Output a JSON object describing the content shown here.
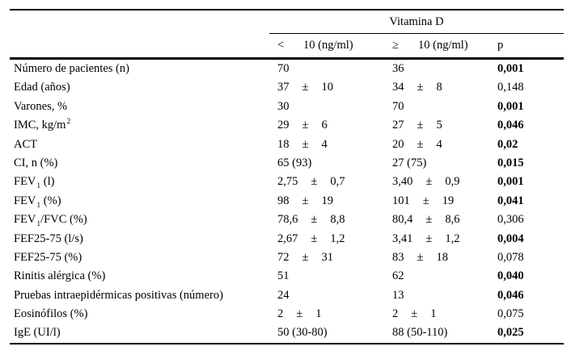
{
  "page": {
    "background": "#ffffff",
    "text_color": "#000000"
  },
  "table": {
    "group_header": {
      "title": "Vitamina D"
    },
    "columns": {
      "col1": {
        "symbol": "<",
        "label": "10 (ng/ml)"
      },
      "col2": {
        "symbol": "≥",
        "label": "10 (ng/ml)"
      },
      "p": {
        "label": "p"
      }
    },
    "rows": [
      {
        "label": {
          "pre": "Número de pacientes (n)"
        },
        "col1": {
          "value": "70"
        },
        "col2": {
          "value": "36"
        },
        "p": {
          "value": "0,001",
          "bold": true
        }
      },
      {
        "label": {
          "pre": "Edad (años)"
        },
        "col1": {
          "value": "37",
          "pm": "±",
          "sd": "10"
        },
        "col2": {
          "value": "34",
          "pm": "±",
          "sd": "8"
        },
        "p": {
          "value": "0,148",
          "bold": false
        }
      },
      {
        "label": {
          "pre": "Varones, %"
        },
        "col1": {
          "value": "30"
        },
        "col2": {
          "value": "70"
        },
        "p": {
          "value": "0,001",
          "bold": true
        }
      },
      {
        "label": {
          "pre": "IMC, kg/m",
          "sup": "2"
        },
        "col1": {
          "value": "29",
          "pm": "±",
          "sd": "6"
        },
        "col2": {
          "value": "27",
          "pm": "±",
          "sd": "5"
        },
        "p": {
          "value": "0,046",
          "bold": true
        }
      },
      {
        "label": {
          "pre": "ACT"
        },
        "col1": {
          "value": "18",
          "pm": "±",
          "sd": "4"
        },
        "col2": {
          "value": "20",
          "pm": "±",
          "sd": "4"
        },
        "p": {
          "value": "0,02",
          "bold": true
        }
      },
      {
        "label": {
          "pre": "CI, n (%)"
        },
        "col1": {
          "value": "65 (93)"
        },
        "col2": {
          "value": "27 (75)"
        },
        "p": {
          "value": "0,015",
          "bold": true
        }
      },
      {
        "label": {
          "pre": "FEV",
          "sub": "1",
          "post": " (l)"
        },
        "col1": {
          "value": "2,75",
          "pm": "±",
          "sd": "0,7"
        },
        "col2": {
          "value": "3,40",
          "pm": "±",
          "sd": "0,9"
        },
        "p": {
          "value": "0,001",
          "bold": true
        }
      },
      {
        "label": {
          "pre": "FEV",
          "sub": "1",
          "post": " (%)"
        },
        "col1": {
          "value": "98",
          "pm": "±",
          "sd": "19"
        },
        "col2": {
          "value": "101",
          "pm": "±",
          "sd": "19"
        },
        "p": {
          "value": "0,041",
          "bold": true
        }
      },
      {
        "label": {
          "pre": "FEV",
          "sub": "1",
          "post": "/FVC (%)"
        },
        "col1": {
          "value": "78,6",
          "pm": "±",
          "sd": "8,8"
        },
        "col2": {
          "value": "80,4",
          "pm": "±",
          "sd": "8,6"
        },
        "p": {
          "value": "0,306",
          "bold": false
        }
      },
      {
        "label": {
          "pre": "FEF25-75 (l/s)"
        },
        "col1": {
          "value": "2,67",
          "pm": "±",
          "sd": "1,2"
        },
        "col2": {
          "value": "3,41",
          "pm": "±",
          "sd": "1,2"
        },
        "p": {
          "value": "0,004",
          "bold": true
        }
      },
      {
        "label": {
          "pre": "FEF25-75 (%)"
        },
        "col1": {
          "value": "72",
          "pm": "±",
          "sd": "31"
        },
        "col2": {
          "value": "83",
          "pm": "±",
          "sd": "18"
        },
        "p": {
          "value": "0,078",
          "bold": false
        }
      },
      {
        "label": {
          "pre": "Rinitis alérgica (%)"
        },
        "col1": {
          "value": "51"
        },
        "col2": {
          "value": "62"
        },
        "p": {
          "value": "0,040",
          "bold": true
        }
      },
      {
        "label": {
          "pre": "Pruebas intraepidérmicas positivas (número)"
        },
        "col1": {
          "value": "24"
        },
        "col2": {
          "value": "13"
        },
        "p": {
          "value": "0,046",
          "bold": true
        }
      },
      {
        "label": {
          "pre": "Eosinófilos (%)"
        },
        "col1": {
          "value": "2",
          "pm": "±",
          "sd": "1"
        },
        "col2": {
          "value": "2",
          "pm": "±",
          "sd": "1"
        },
        "p": {
          "value": "0,075",
          "bold": false
        }
      },
      {
        "label": {
          "pre": "IgE (UI/l)"
        },
        "col1": {
          "value": "50 (30-80)"
        },
        "col2": {
          "value": "88 (50-110)"
        },
        "p": {
          "value": "0,025",
          "bold": true
        }
      }
    ]
  }
}
